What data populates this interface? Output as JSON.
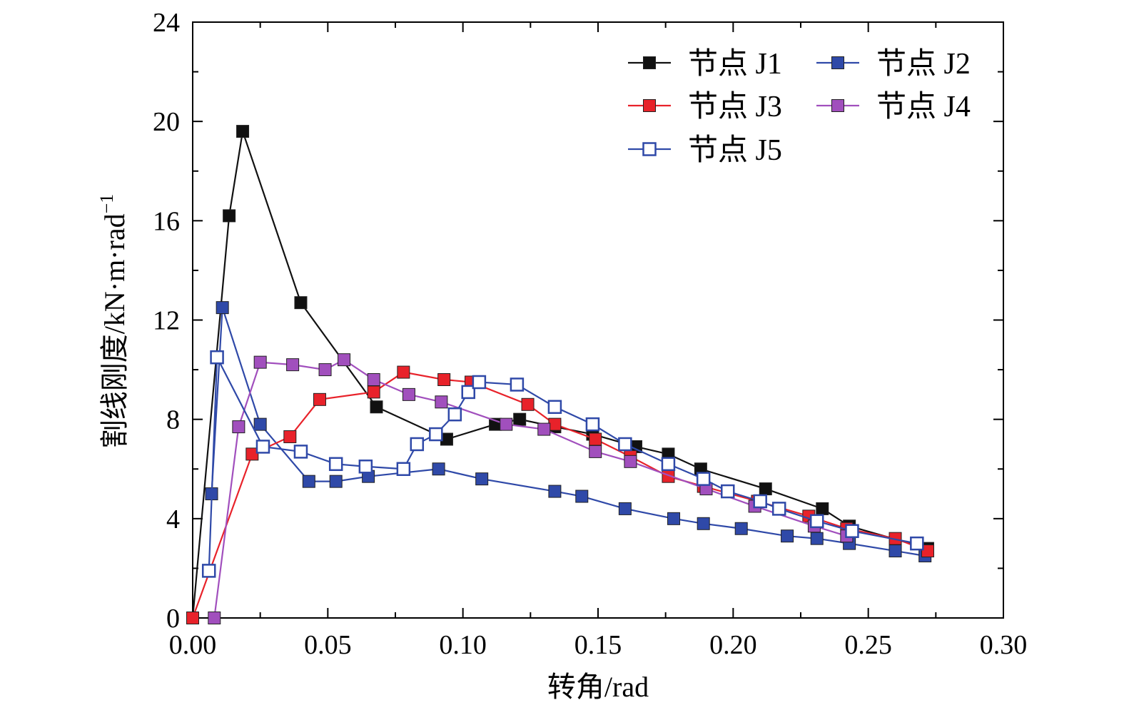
{
  "chart_data": {
    "type": "line",
    "xlabel": "转角/rad",
    "ylabel": "割线刚度/kN·m·rad",
    "ylabel_sup": "−1",
    "xlim": [
      0,
      0.3
    ],
    "ylim": [
      0,
      24
    ],
    "xticks": [
      "0.00",
      "0.05",
      "0.10",
      "0.15",
      "0.20",
      "0.25",
      "0.30"
    ],
    "yticks": [
      "0",
      "4",
      "8",
      "12",
      "16",
      "20",
      "24"
    ],
    "legend_position": "top-right",
    "grid": false,
    "series": [
      {
        "name": "节点 J1",
        "color": "#111111",
        "marker": "filled-square",
        "x": [
          0.0,
          0.0135,
          0.0185,
          0.04,
          0.068,
          0.094,
          0.112,
          0.121,
          0.134,
          0.148,
          0.164,
          0.176,
          0.188,
          0.212,
          0.233,
          0.243,
          0.272
        ],
        "y": [
          0.0,
          16.2,
          19.6,
          12.7,
          8.5,
          7.2,
          7.8,
          8.0,
          7.7,
          7.4,
          6.9,
          6.6,
          6.0,
          5.2,
          4.4,
          3.7,
          2.8
        ]
      },
      {
        "name": "节点 J2",
        "color": "#2f49a8",
        "marker": "filled-square",
        "x": [
          0.007,
          0.011,
          0.025,
          0.043,
          0.053,
          0.065,
          0.091,
          0.107,
          0.134,
          0.144,
          0.16,
          0.178,
          0.189,
          0.203,
          0.22,
          0.231,
          0.243,
          0.26,
          0.271
        ],
        "y": [
          5.0,
          12.5,
          7.8,
          5.5,
          5.5,
          5.7,
          6.0,
          5.6,
          5.1,
          4.9,
          4.4,
          4.0,
          3.8,
          3.6,
          3.3,
          3.2,
          3.0,
          2.7,
          2.5
        ]
      },
      {
        "name": "节点 J3",
        "color": "#e8222a",
        "marker": "filled-square",
        "x": [
          0.0,
          0.022,
          0.036,
          0.047,
          0.067,
          0.078,
          0.093,
          0.103,
          0.124,
          0.134,
          0.149,
          0.162,
          0.176,
          0.189,
          0.209,
          0.228,
          0.242,
          0.26,
          0.272
        ],
        "y": [
          0.0,
          6.6,
          7.3,
          8.8,
          9.1,
          9.9,
          9.6,
          9.5,
          8.6,
          7.8,
          7.2,
          6.5,
          5.7,
          5.3,
          4.7,
          4.1,
          3.6,
          3.2,
          2.7
        ]
      },
      {
        "name": "节点 J4",
        "color": "#a14fbd",
        "marker": "filled-square",
        "x": [
          0.008,
          0.017,
          0.025,
          0.037,
          0.049,
          0.056,
          0.067,
          0.08,
          0.092,
          0.116,
          0.13,
          0.149,
          0.162,
          0.19,
          0.208,
          0.23,
          0.242
        ],
        "y": [
          0.0,
          7.7,
          10.3,
          10.2,
          10.0,
          10.4,
          9.6,
          9.0,
          8.7,
          7.8,
          7.6,
          6.7,
          6.3,
          5.2,
          4.5,
          3.7,
          3.3
        ]
      },
      {
        "name": "节点 J5",
        "color": "#2f49a8",
        "marker": "open-square",
        "x": [
          0.006,
          0.009,
          0.026,
          0.04,
          0.053,
          0.064,
          0.078,
          0.083,
          0.09,
          0.097,
          0.102,
          0.106,
          0.12,
          0.134,
          0.148,
          0.16,
          0.176,
          0.189,
          0.198,
          0.21,
          0.217,
          0.231,
          0.244,
          0.268
        ],
        "y": [
          1.9,
          10.5,
          6.9,
          6.7,
          6.2,
          6.1,
          6.0,
          7.0,
          7.4,
          8.2,
          9.1,
          9.5,
          9.4,
          8.5,
          7.8,
          7.0,
          6.2,
          5.6,
          5.1,
          4.7,
          4.4,
          3.9,
          3.5,
          3.0
        ]
      }
    ]
  }
}
